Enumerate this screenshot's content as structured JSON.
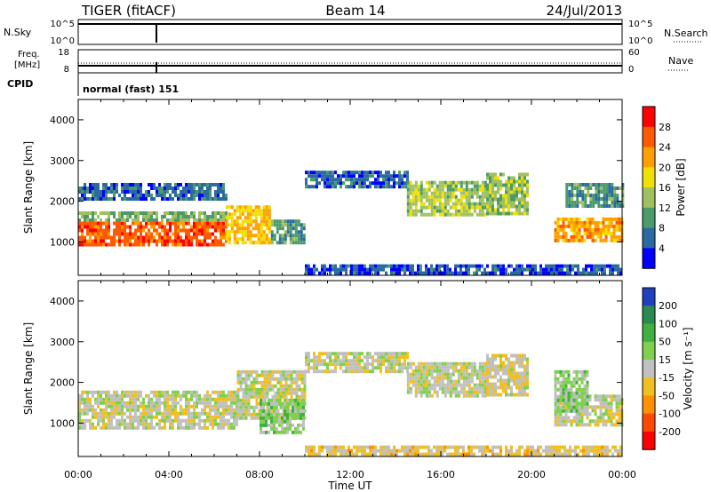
{
  "header": {
    "radar": "TIGER (fitACF)",
    "beam": "Beam 14",
    "date": "24/Jul/2013"
  },
  "strips": {
    "nsky_label": "N.Sky",
    "nsky_ticks": [
      "10^5",
      "10^0"
    ],
    "nsearch_label": "N.Search",
    "nsearch_ticks": [
      "10^5",
      "10^0"
    ],
    "freq_label_top": "Freq.",
    "freq_label_unit": "[MHz]",
    "freq_ticks": [
      "18",
      "8"
    ],
    "nave_label": "Nave",
    "nave_ticks": [
      "60",
      "0"
    ],
    "cpid_label": "CPID",
    "cpid_value": "normal (fast) 151"
  },
  "chart_data": [
    {
      "type": "heatmap",
      "title": "",
      "ylabel": "Slant Range [km]",
      "xlabel": "",
      "x_ticks": [
        "00:00",
        "04:00",
        "08:00",
        "12:00",
        "16:00",
        "20:00",
        "00:00"
      ],
      "y_ticks": [
        1000,
        2000,
        3000,
        4000
      ],
      "xlim_hours": [
        0,
        24
      ],
      "ylim": [
        180,
        4500
      ],
      "colorbar_label": "Power [dB]",
      "colorbar_ticks": [
        "28",
        "24",
        "20",
        "16",
        "12",
        "8",
        "4"
      ],
      "colorbar_colors": [
        "#ff0000",
        "#ff5a00",
        "#ffa000",
        "#f0e000",
        "#a0c060",
        "#4a9a6a",
        "#2a6aa0",
        "#0000ff"
      ],
      "colorbar_range": [
        0,
        32
      ],
      "bands": [
        {
          "t0": 0,
          "t1": 6.5,
          "r0": 900,
          "r1": 1500,
          "level": 26
        },
        {
          "t0": 0,
          "t1": 6.5,
          "r0": 1500,
          "r1": 1750,
          "level": 12
        },
        {
          "t0": 0,
          "t1": 6.5,
          "r0": 2050,
          "r1": 2450,
          "level": 6
        },
        {
          "t0": 6.5,
          "t1": 8.5,
          "r0": 950,
          "r1": 1900,
          "level": 20
        },
        {
          "t0": 8.5,
          "t1": 10,
          "r0": 950,
          "r1": 1550,
          "level": 10
        },
        {
          "t0": 10,
          "t1": 14.5,
          "r0": 2350,
          "r1": 2750,
          "level": 6
        },
        {
          "t0": 14.5,
          "t1": 18,
          "r0": 1700,
          "r1": 2500,
          "level": 14
        },
        {
          "t0": 18,
          "t1": 19.8,
          "r0": 1700,
          "r1": 2700,
          "level": 14
        },
        {
          "t0": 21,
          "t1": 24,
          "r0": 1000,
          "r1": 1600,
          "level": 22
        },
        {
          "t0": 21.5,
          "t1": 24,
          "r0": 1900,
          "r1": 2450,
          "level": 10
        },
        {
          "t0": 10,
          "t1": 24,
          "r0": 200,
          "r1": 450,
          "level": 5
        }
      ]
    },
    {
      "type": "heatmap",
      "title": "",
      "ylabel": "Slant Range [km]",
      "xlabel": "Time UT",
      "x_ticks": [
        "00:00",
        "04:00",
        "08:00",
        "12:00",
        "16:00",
        "20:00",
        "00:00"
      ],
      "y_ticks": [
        1000,
        2000,
        3000,
        4000
      ],
      "xlim_hours": [
        0,
        24
      ],
      "ylim": [
        180,
        4500
      ],
      "colorbar_label": "Velocity [m s⁻¹]",
      "colorbar_ticks": [
        "200",
        "100",
        "50",
        "15",
        "-15",
        "-50",
        "-100",
        "-200"
      ],
      "colorbar_colors": [
        "#2040c0",
        "#2a8a50",
        "#40b040",
        "#80d050",
        "#c0c0c0",
        "#f0c020",
        "#ff9000",
        "#ff4800",
        "#ff0000"
      ],
      "colorbar_range": [
        -250,
        250
      ],
      "bands": [
        {
          "t0": 0,
          "t1": 7,
          "r0": 900,
          "r1": 1800,
          "level": 0
        },
        {
          "t0": 7,
          "t1": 10,
          "r0": 1100,
          "r1": 2300,
          "level": 0
        },
        {
          "t0": 8,
          "t1": 10,
          "r0": 750,
          "r1": 1600,
          "level": 60
        },
        {
          "t0": 10,
          "t1": 14.5,
          "r0": 2250,
          "r1": 2750,
          "level": 0
        },
        {
          "t0": 14.5,
          "t1": 18,
          "r0": 1700,
          "r1": 2500,
          "level": 0
        },
        {
          "t0": 18,
          "t1": 19.8,
          "r0": 1700,
          "r1": 2700,
          "level": -20
        },
        {
          "t0": 21,
          "t1": 24,
          "r0": 1000,
          "r1": 1700,
          "level": 0
        },
        {
          "t0": 21,
          "t1": 22.5,
          "r0": 1300,
          "r1": 2300,
          "level": 45
        },
        {
          "t0": 10,
          "t1": 24,
          "r0": 200,
          "r1": 450,
          "level": -40
        }
      ]
    }
  ]
}
